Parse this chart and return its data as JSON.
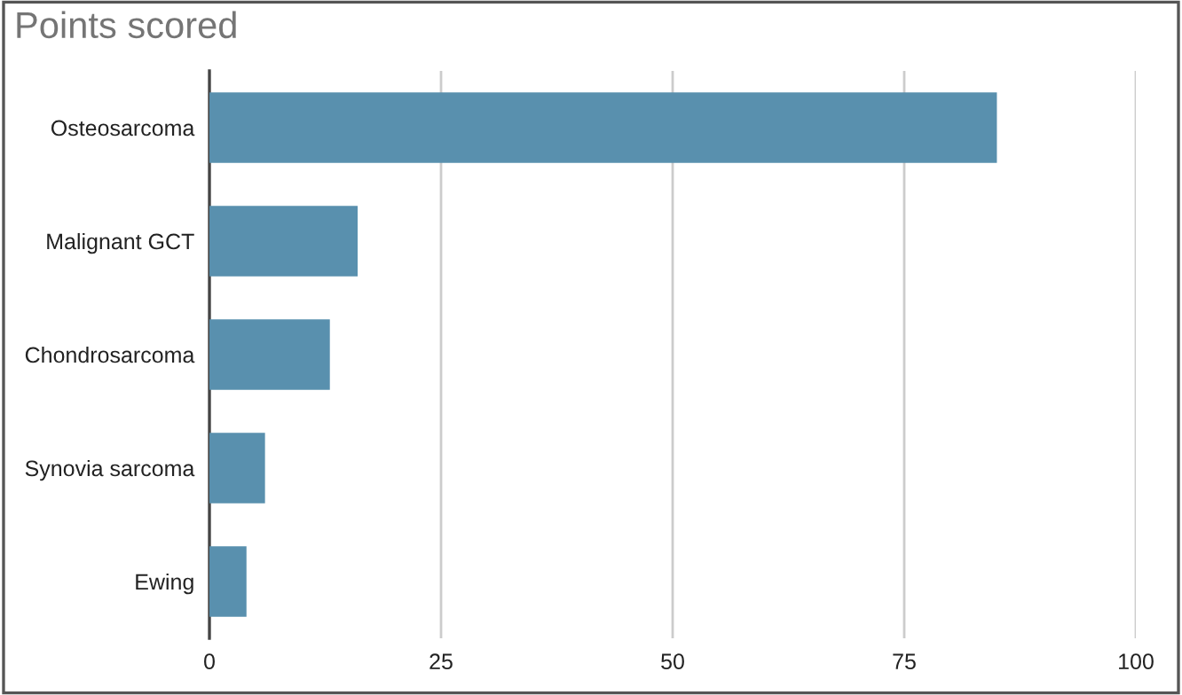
{
  "chart_data": {
    "type": "bar",
    "orientation": "horizontal",
    "title": "Points scored",
    "categories": [
      "Osteosarcoma",
      "Malignant GCT",
      "Chondrosarcoma",
      "Synovia sarcoma",
      "Ewing"
    ],
    "values": [
      85,
      16,
      13,
      6,
      4
    ],
    "color": "#5990ae",
    "xlim": [
      0,
      100
    ],
    "xticks": [
      0,
      25,
      50,
      75,
      100
    ],
    "grid": "x"
  }
}
